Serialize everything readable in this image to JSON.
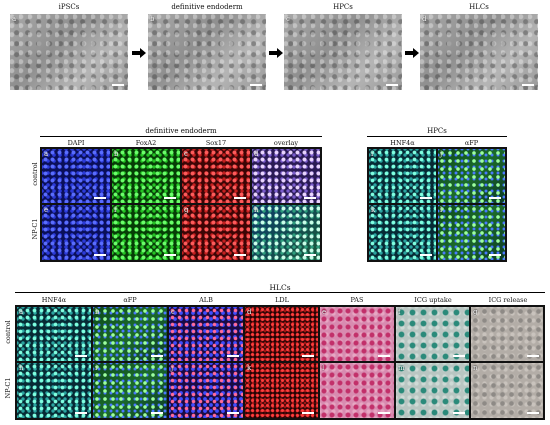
{
  "top_row": {
    "labels": [
      "iPSCs",
      "definitive endoderm",
      "HPCs",
      "HLCs"
    ],
    "letters": [
      "a",
      "b",
      "c",
      "d"
    ]
  },
  "de_block": {
    "title": "definitive endoderm",
    "columns": [
      "DAPI",
      "FoxA2",
      "Sox17",
      "overlay"
    ],
    "rows": [
      "control",
      "NP-C1"
    ],
    "letters": [
      "a",
      "b",
      "c",
      "d",
      "e",
      "f",
      "g",
      "h"
    ]
  },
  "hpc_block": {
    "title": "HPCs",
    "columns": [
      "HNF4α",
      "αFP"
    ],
    "letters": [
      "i",
      "j",
      "k",
      "l"
    ]
  },
  "hlc_block": {
    "title": "HLCs",
    "columns": [
      "HNF4α",
      "αFP",
      "ALB",
      "LDL",
      "PAS",
      "ICG uptake",
      "ICG release"
    ],
    "rows": [
      "control",
      "NP-C1"
    ],
    "letters": [
      "a",
      "b",
      "c",
      "d",
      "e",
      "f",
      "g",
      "h",
      "i",
      "j",
      "k",
      "l",
      "m",
      "n"
    ]
  }
}
